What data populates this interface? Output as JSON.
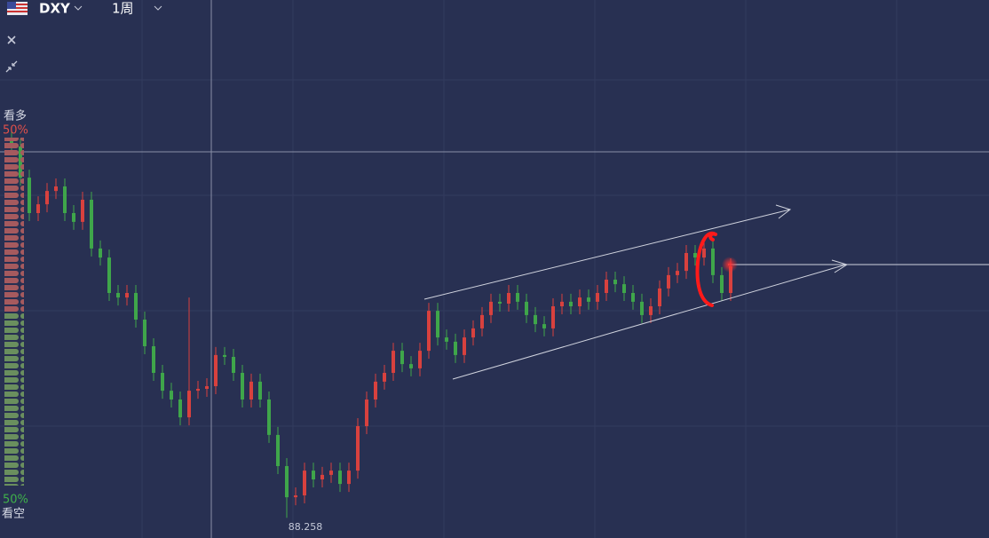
{
  "toolbar": {
    "symbol": "DXY",
    "interval": "1周"
  },
  "sentiment": {
    "bull_label": "看多",
    "bull_pct": 50,
    "bull_pct_label": "50%",
    "bear_label": "看空",
    "bear_pct": 50,
    "bear_pct_label": "50%"
  },
  "chart_data": {
    "type": "candlestick",
    "ylim": [
      87.5,
      107.7
    ],
    "up_color": "#d8413e",
    "down_color": "#3fa64a",
    "open": [
      102.5,
      102.2,
      101.03,
      99.7,
      100.03,
      100.53,
      100.7,
      99.7,
      99.37,
      100.2,
      98.37,
      98.03,
      96.7,
      96.53,
      96.7,
      95.7,
      94.7,
      93.7,
      93.03,
      92.7,
      92.03,
      93.03,
      93.1,
      93.2,
      94.37,
      94.3,
      93.7,
      92.7,
      93.37,
      92.7,
      91.37,
      90.2,
      89.03,
      89.1,
      90.03,
      89.7,
      89.87,
      90.03,
      89.53,
      90.03,
      91.7,
      92.7,
      93.37,
      93.7,
      94.53,
      94.03,
      93.87,
      94.53,
      96.03,
      95.03,
      94.87,
      94.37,
      95.03,
      95.37,
      95.87,
      96.37,
      96.3,
      96.7,
      96.37,
      95.87,
      95.53,
      95.37,
      96.2,
      96.37,
      96.2,
      96.53,
      96.37,
      96.7,
      97.2,
      97.03,
      96.7,
      96.37,
      95.87,
      96.2,
      96.87,
      97.37,
      97.53,
      98.2,
      98.03,
      98.37,
      97.37,
      96.7
    ],
    "high": [
      102.8,
      102.5,
      101.33,
      100.33,
      100.83,
      101.0,
      101.0,
      100.0,
      100.5,
      100.5,
      98.67,
      98.33,
      97.0,
      97.0,
      97.0,
      96.0,
      95.0,
      94.0,
      93.33,
      93.0,
      96.53,
      93.4,
      93.5,
      94.67,
      94.67,
      94.6,
      94.0,
      93.67,
      93.67,
      93.0,
      91.67,
      90.5,
      89.4,
      90.33,
      90.33,
      90.17,
      90.33,
      90.33,
      90.33,
      92.0,
      93.0,
      93.67,
      94.0,
      94.83,
      94.83,
      94.33,
      94.83,
      96.33,
      96.33,
      95.33,
      95.17,
      95.33,
      95.67,
      96.17,
      96.67,
      96.67,
      97.0,
      97.0,
      96.67,
      96.17,
      95.83,
      96.5,
      96.67,
      96.67,
      96.83,
      96.83,
      97.0,
      97.5,
      97.5,
      97.33,
      97.0,
      96.67,
      96.5,
      97.17,
      97.67,
      97.83,
      98.5,
      98.5,
      98.67,
      98.67,
      97.67,
      98.0
    ],
    "low": [
      101.9,
      100.73,
      99.4,
      99.4,
      99.73,
      100.23,
      99.4,
      99.07,
      99.07,
      98.07,
      97.73,
      96.4,
      96.23,
      96.23,
      95.4,
      94.4,
      93.4,
      92.73,
      92.4,
      91.73,
      91.73,
      92.73,
      92.8,
      92.9,
      94.0,
      93.4,
      92.4,
      92.4,
      92.4,
      91.07,
      89.9,
      88.258,
      88.73,
      88.8,
      89.4,
      89.4,
      89.57,
      89.23,
      89.23,
      89.73,
      91.4,
      92.4,
      93.07,
      93.4,
      93.73,
      93.57,
      93.57,
      94.23,
      94.73,
      94.57,
      94.07,
      94.07,
      94.73,
      95.07,
      95.57,
      96.0,
      96.0,
      96.07,
      95.57,
      95.23,
      95.07,
      95.07,
      95.9,
      95.9,
      95.9,
      96.07,
      96.07,
      96.4,
      96.73,
      96.4,
      96.07,
      95.57,
      95.57,
      95.9,
      96.57,
      97.07,
      97.23,
      97.73,
      97.73,
      97.07,
      96.4,
      96.4
    ],
    "close": [
      102.2,
      101.03,
      99.7,
      100.03,
      100.53,
      100.7,
      99.7,
      99.37,
      100.2,
      98.37,
      98.03,
      96.7,
      96.53,
      96.7,
      95.7,
      94.7,
      93.7,
      93.03,
      92.7,
      92.03,
      93.03,
      93.1,
      93.2,
      94.37,
      94.3,
      93.7,
      92.7,
      93.37,
      92.7,
      91.37,
      90.2,
      89.03,
      89.1,
      90.03,
      89.7,
      89.87,
      90.03,
      89.53,
      90.03,
      91.7,
      92.7,
      93.37,
      93.7,
      94.53,
      94.03,
      93.87,
      94.53,
      96.03,
      95.03,
      94.87,
      94.37,
      95.03,
      95.37,
      95.87,
      96.37,
      96.3,
      96.7,
      96.37,
      95.87,
      95.53,
      95.37,
      96.2,
      96.37,
      96.2,
      96.53,
      96.37,
      96.7,
      97.2,
      97.03,
      96.7,
      96.37,
      95.87,
      96.2,
      96.87,
      97.37,
      97.53,
      98.2,
      98.03,
      98.37,
      97.37,
      96.7,
      97.7
    ],
    "low_label_index": 31
  }
}
